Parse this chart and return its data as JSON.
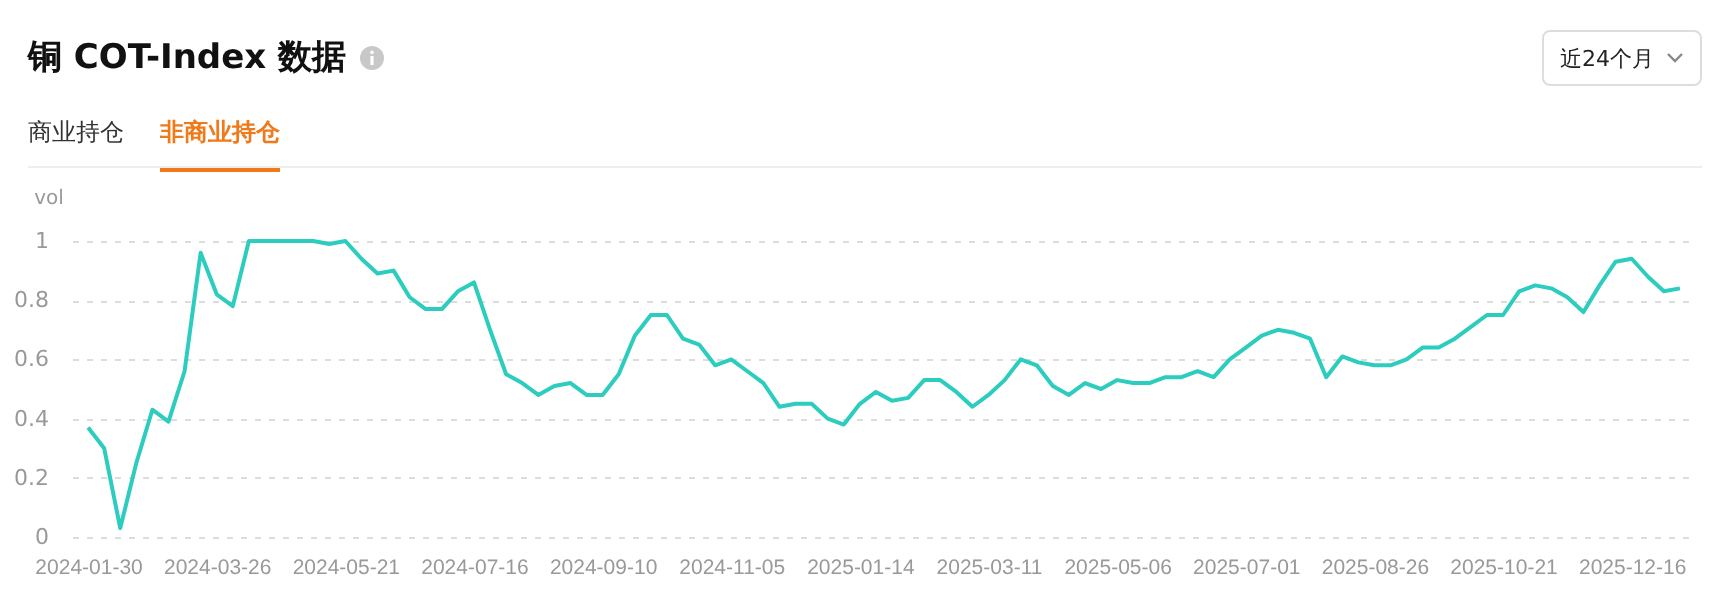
{
  "chart_data": {
    "type": "line",
    "title": "铜 COT-Index 数据",
    "ylabel": "vol",
    "annotations": [
      "商业持仓",
      "非商业持仓",
      "近24个月"
    ],
    "categories": [
      "2024-01-30",
      null,
      null,
      null,
      null,
      null,
      null,
      null,
      "2024-03-26",
      null,
      null,
      null,
      null,
      null,
      null,
      null,
      "2024-05-21",
      null,
      null,
      null,
      null,
      null,
      null,
      null,
      "2024-07-16",
      null,
      null,
      null,
      null,
      null,
      null,
      null,
      "2024-09-10",
      null,
      null,
      null,
      null,
      null,
      null,
      null,
      "2024-11-05",
      null,
      null,
      null,
      null,
      null,
      null,
      null,
      "2025-01-14",
      null,
      null,
      null,
      null,
      null,
      null,
      null,
      "2025-03-11",
      null,
      null,
      null,
      null,
      null,
      null,
      null,
      "2025-05-06",
      null,
      null,
      null,
      null,
      null,
      null,
      null,
      "2025-07-01",
      null,
      null,
      null,
      null,
      null,
      null,
      null,
      "2025-08-26",
      null,
      null,
      null,
      null,
      null,
      null,
      null,
      "2025-10-21",
      null,
      null,
      null,
      null,
      null,
      null,
      null,
      "2025-12-16",
      null,
      null,
      null
    ],
    "values": [
      0.37,
      0.3,
      0.03,
      0.25,
      0.43,
      0.39,
      0.56,
      0.96,
      0.82,
      0.78,
      1.0,
      1.0,
      1.0,
      1.0,
      1.0,
      0.99,
      1.0,
      0.94,
      0.89,
      0.9,
      0.81,
      0.77,
      0.77,
      0.83,
      0.86,
      0.7,
      0.55,
      0.52,
      0.48,
      0.51,
      0.52,
      0.48,
      0.48,
      0.55,
      0.68,
      0.75,
      0.75,
      0.67,
      0.65,
      0.58,
      0.6,
      0.56,
      0.52,
      0.44,
      0.45,
      0.45,
      0.4,
      0.38,
      0.45,
      0.49,
      0.46,
      0.47,
      0.53,
      0.53,
      0.49,
      0.44,
      0.48,
      0.53,
      0.6,
      0.58,
      0.51,
      0.48,
      0.52,
      0.5,
      0.53,
      0.52,
      0.52,
      0.54,
      0.54,
      0.56,
      0.54,
      0.6,
      0.64,
      0.68,
      0.7,
      0.69,
      0.67,
      0.54,
      0.61,
      0.59,
      0.58,
      0.58,
      0.6,
      0.64,
      0.64,
      0.67,
      0.71,
      0.75,
      0.75,
      0.83,
      0.85,
      0.84,
      0.81,
      0.76,
      0.85,
      0.93,
      0.94,
      0.88,
      0.83,
      0.84
    ],
    "color": "#2ccdbf",
    "ylim": [
      0,
      1
    ],
    "yticks": [
      0,
      0.2,
      0.4,
      0.6,
      0.8,
      1
    ],
    "grid": "y",
    "marker": "none",
    "line_style": "solid"
  }
}
